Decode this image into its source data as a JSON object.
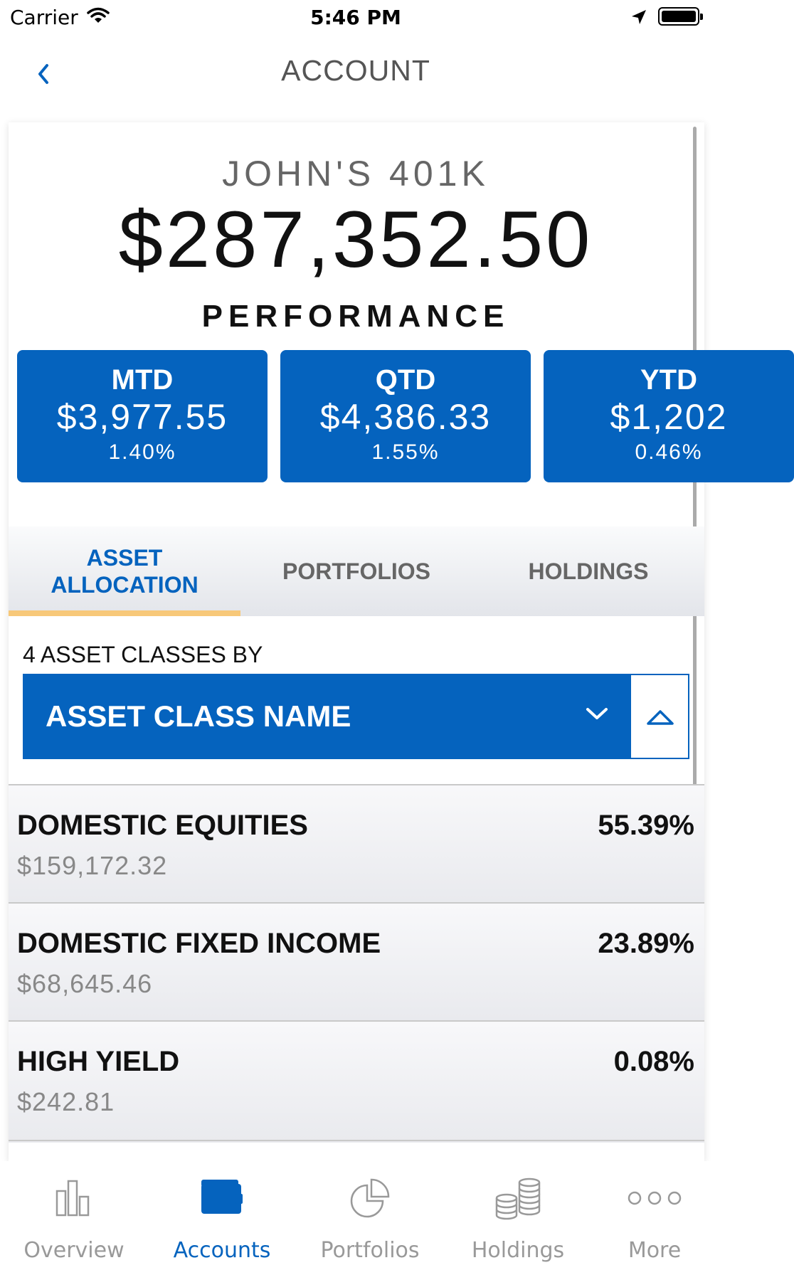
{
  "status_bar": {
    "carrier": "Carrier",
    "time": "5:46 PM"
  },
  "nav": {
    "title": "ACCOUNT"
  },
  "account": {
    "name": "JOHN'S 401K",
    "value": "$287,352.50"
  },
  "performance": {
    "title": "PERFORMANCE",
    "tiles": [
      {
        "label": "MTD",
        "amount": "$3,977.55",
        "percent": "1.40%"
      },
      {
        "label": "QTD",
        "amount": "$4,386.33",
        "percent": "1.55%"
      },
      {
        "label": "YTD",
        "amount": "$1,202",
        "percent": "0.46%"
      }
    ]
  },
  "tabs": [
    {
      "label": "ASSET ALLOCATION",
      "active": true
    },
    {
      "label": "PORTFOLIOS",
      "active": false
    },
    {
      "label": "HOLDINGS",
      "active": false
    }
  ],
  "sort": {
    "label": "4 ASSET CLASSES BY",
    "selected": "ASSET CLASS NAME"
  },
  "asset_classes": [
    {
      "name": "DOMESTIC EQUITIES",
      "amount": "$159,172.32",
      "percent": "55.39%"
    },
    {
      "name": "DOMESTIC FIXED INCOME",
      "amount": "$68,645.46",
      "percent": "23.89%"
    },
    {
      "name": "HIGH YIELD",
      "amount": "$242.81",
      "percent": "0.08%"
    }
  ],
  "tab_bar": {
    "items": [
      {
        "label": "Overview",
        "icon": "bar-chart-icon"
      },
      {
        "label": "Accounts",
        "icon": "wallet-icon"
      },
      {
        "label": "Portfolios",
        "icon": "pie-chart-icon"
      },
      {
        "label": "Holdings",
        "icon": "coins-icon"
      },
      {
        "label": "More",
        "icon": "more-icon"
      }
    ],
    "active_index": 1
  },
  "colors": {
    "brand_blue": "#0563be",
    "tab_underline": "#f7c879"
  }
}
